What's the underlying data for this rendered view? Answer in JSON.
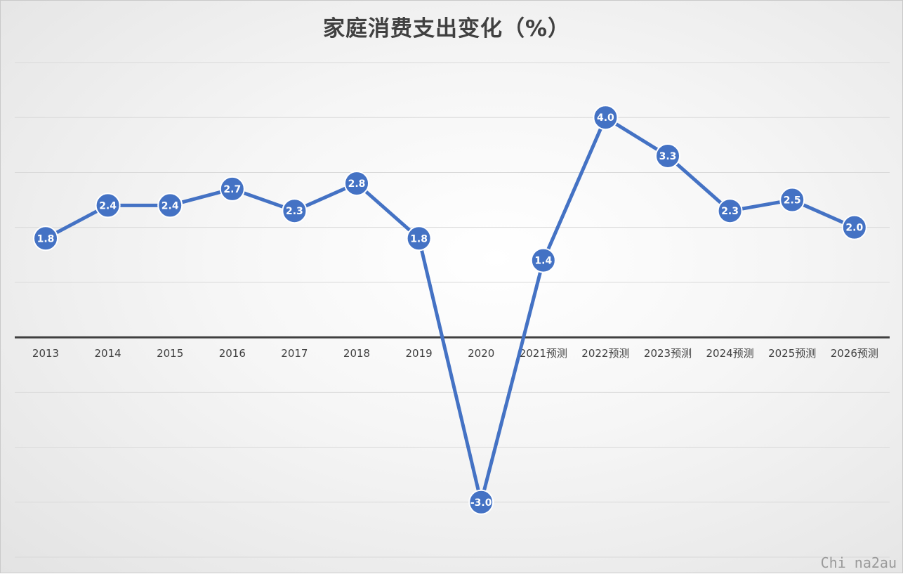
{
  "chart_data": {
    "type": "line",
    "title": "家庭消费支出变化（%）",
    "categories": [
      "2013",
      "2014",
      "2015",
      "2016",
      "2017",
      "2018",
      "2019",
      "2020",
      "2021预测",
      "2022预测",
      "2023预测",
      "2024预测",
      "2025预测",
      "2026预测"
    ],
    "series": [
      {
        "values": [
          1.8,
          2.4,
          2.4,
          2.7,
          2.3,
          2.8,
          1.8,
          -3.0,
          1.4,
          4.0,
          3.3,
          2.3,
          2.5,
          2.0
        ],
        "data_labels": [
          "1.8",
          "2.4",
          "2.4",
          "2.7",
          "2.3",
          "2.8",
          "1.8",
          "-3.0",
          "1.4",
          "4.0",
          "3.3",
          "2.3",
          "2.5",
          "2.0"
        ]
      }
    ],
    "ylim": [
      -4,
      5
    ],
    "grid": true,
    "legend": "none",
    "xlabel": "",
    "ylabel": "",
    "colors": {
      "line": "#4472C4",
      "marker": "#4472C4",
      "label_text": "#ffffff",
      "axis": "#404040",
      "grid": "#d9d9d9"
    }
  },
  "watermark": "Chi na2au"
}
